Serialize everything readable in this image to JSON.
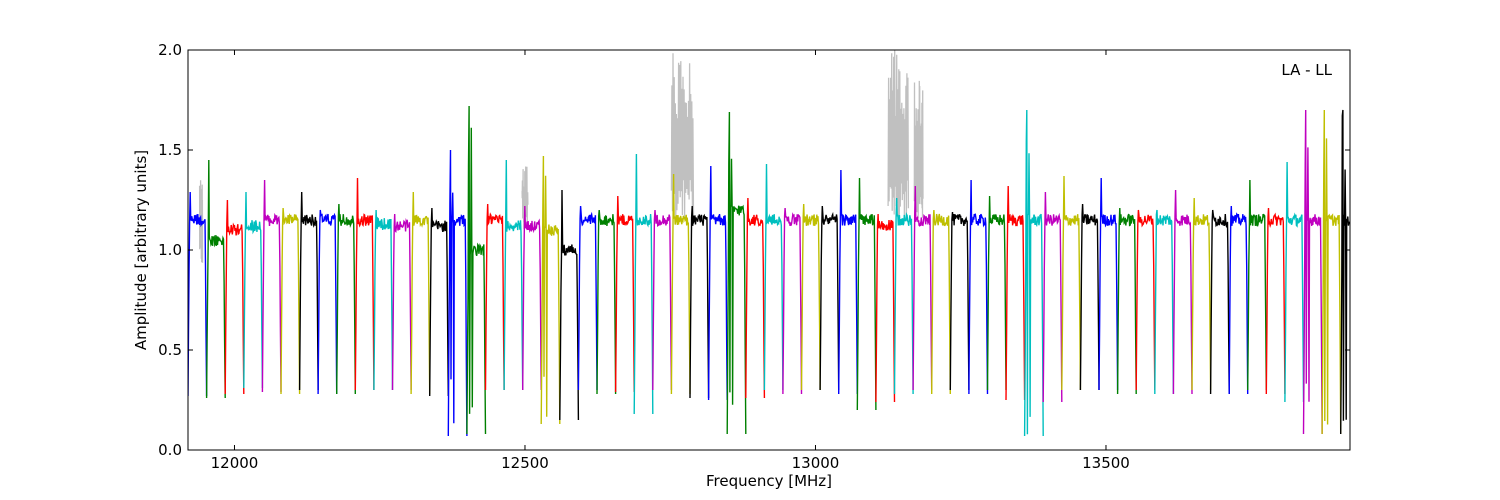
{
  "chart_data": {
    "type": "line",
    "title": "",
    "xlabel": "Frequency [MHz]",
    "ylabel": "Amplitude [arbitrary units]",
    "annotation": "LA - LL",
    "xlim": [
      11920,
      13920
    ],
    "ylim": [
      0.0,
      2.0
    ],
    "grid": false,
    "x_ticks": [
      12000,
      12500,
      13000,
      13500
    ],
    "y_ticks": [
      0.0,
      0.5,
      1.0,
      1.5,
      2.0
    ],
    "x_tick_labels": [
      "12000",
      "12500",
      "13000",
      "13500"
    ],
    "y_tick_labels": [
      "0.0",
      "0.5",
      "1.0",
      "1.5",
      "2.0"
    ],
    "palette": [
      "#0000ff",
      "#008000",
      "#ff0000",
      "#00bfbf",
      "#bf00bf",
      "#bfbf00",
      "#000000"
    ],
    "flagged_color": "#c0c0c0",
    "channel_width_mhz": 32,
    "channel_start_mhz": 11920,
    "channel_count": 63,
    "channel_peak_amplitudes": [
      1.29,
      1.45,
      1.25,
      1.29,
      1.35,
      1.21,
      1.29,
      1.2,
      1.23,
      1.36,
      1.2,
      1.18,
      1.29,
      1.21,
      1.5,
      1.72,
      1.23,
      1.45,
      1.22,
      1.47,
      1.3,
      1.22,
      1.2,
      1.27,
      1.48,
      1.2,
      1.38,
      1.22,
      1.42,
      1.69,
      1.26,
      1.43,
      1.21,
      1.23,
      1.22,
      1.4,
      1.36,
      1.18,
      1.26,
      1.32,
      1.2,
      1.19,
      1.35,
      1.27,
      1.32,
      1.7,
      1.29,
      1.37,
      1.23,
      1.36,
      1.21,
      1.2,
      1.2,
      1.3,
      1.26,
      1.2,
      1.22,
      1.35,
      1.21,
      1.44,
      1.7,
      1.7,
      1.7
    ],
    "channel_mean_amplitudes": [
      1.15,
      1.05,
      1.1,
      1.12,
      1.15,
      1.15,
      1.15,
      1.15,
      1.15,
      1.15,
      1.13,
      1.12,
      1.15,
      1.12,
      1.15,
      1.0,
      1.15,
      1.12,
      1.12,
      1.1,
      1.0,
      1.15,
      1.15,
      1.15,
      1.15,
      1.15,
      1.15,
      1.15,
      1.15,
      1.2,
      1.15,
      1.15,
      1.15,
      1.15,
      1.15,
      1.15,
      1.15,
      1.12,
      1.15,
      1.15,
      1.15,
      1.15,
      1.15,
      1.15,
      1.15,
      1.15,
      1.15,
      1.15,
      1.15,
      1.15,
      1.15,
      1.15,
      1.15,
      1.15,
      1.15,
      1.15,
      1.15,
      1.15,
      1.15,
      1.15,
      1.15,
      1.15,
      1.15
    ],
    "channel_edge_minima": [
      0.27,
      0.26,
      0.28,
      0.31,
      0.29,
      0.28,
      0.3,
      0.28,
      0.28,
      0.3,
      0.3,
      0.3,
      0.28,
      0.27,
      0.07,
      0.08,
      0.3,
      0.3,
      0.3,
      0.13,
      0.15,
      0.3,
      0.28,
      0.29,
      0.18,
      0.3,
      0.28,
      0.26,
      0.25,
      0.08,
      0.26,
      0.3,
      0.28,
      0.3,
      0.3,
      0.28,
      0.2,
      0.24,
      0.28,
      0.3,
      0.28,
      0.3,
      0.28,
      0.3,
      0.25,
      0.07,
      0.24,
      0.3,
      0.3,
      0.3,
      0.28,
      0.3,
      0.28,
      0.28,
      0.3,
      0.28,
      0.28,
      0.3,
      0.28,
      0.24,
      0.08,
      0.08,
      0.08
    ],
    "flagged_segments": [
      {
        "x": [
          12752,
          12790
        ],
        "y_max": 2.0
      },
      {
        "x": [
          13125,
          13160
        ],
        "y_max": 2.0
      },
      {
        "x": [
          13170,
          13185
        ],
        "y_max": 1.85
      },
      {
        "x": [
          12495,
          12505
        ],
        "y_max": 1.45
      },
      {
        "x": [
          11940,
          11945
        ],
        "y_max": 1.28
      }
    ]
  }
}
